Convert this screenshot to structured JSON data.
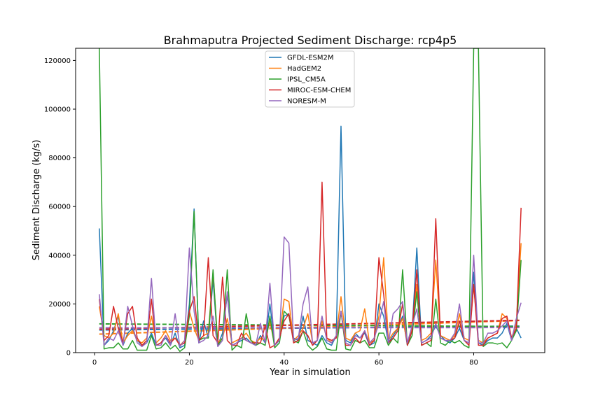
{
  "chart_data": {
    "type": "line",
    "title": "Brahmaputra Projected Sediment Discharge: rcp4p5",
    "xlabel": "Year in simulation",
    "ylabel": "Sediment Discharge (kg/s)",
    "xlim": [
      -4,
      95
    ],
    "ylim": [
      0,
      125000
    ],
    "xticks": [
      0,
      20,
      40,
      60,
      80
    ],
    "yticks": [
      0,
      20000,
      40000,
      60000,
      80000,
      100000,
      120000
    ],
    "grid": false,
    "legend_position": "upper center",
    "series": [
      {
        "name": "GFDL-ESM2M",
        "color": "#1f77b4",
        "values": [
          51000,
          3000,
          5000,
          9000,
          15000,
          3000,
          8000,
          10000,
          5000,
          3000,
          4000,
          8000,
          3000,
          4000,
          6000,
          3000,
          8000,
          2000,
          3000,
          20000,
          59000,
          4000,
          13000,
          6000,
          30000,
          3000,
          8000,
          24000,
          3000,
          4000,
          5000,
          6000,
          4000,
          3000,
          7000,
          4000,
          20000,
          3000,
          5000,
          15000,
          16000,
          6000,
          5000,
          15000,
          5000,
          4000,
          3000,
          7000,
          4000,
          3000,
          7000,
          93000,
          5000,
          4000,
          8000,
          6000,
          8000,
          3000,
          4000,
          20000,
          15000,
          4000,
          7000,
          10000,
          15000,
          3000,
          9000,
          43000,
          4000,
          5000,
          7000,
          11000,
          7000,
          5000,
          4000,
          6000,
          10000,
          5000,
          4000,
          33000,
          4000,
          3000,
          5000,
          6000,
          6000,
          8000,
          12000,
          5000,
          10000,
          6000
        ],
        "trend": [
          9300,
          10900
        ]
      },
      {
        "name": "HadGEM2",
        "color": "#ff7f0e",
        "values": [
          19000,
          7000,
          6000,
          8000,
          16000,
          4000,
          7000,
          9000,
          5000,
          4000,
          6000,
          15000,
          4000,
          6000,
          9000,
          5000,
          6000,
          3000,
          5000,
          17000,
          10000,
          5000,
          7000,
          8000,
          33000,
          4000,
          6000,
          14000,
          4000,
          5000,
          6000,
          8000,
          5000,
          4000,
          6000,
          5000,
          13000,
          3000,
          6000,
          22000,
          21000,
          5000,
          7000,
          10000,
          16000,
          4000,
          5000,
          13000,
          6000,
          4000,
          7000,
          23000,
          6000,
          5000,
          8000,
          9000,
          18000,
          4000,
          5000,
          15000,
          39000,
          5000,
          8000,
          10000,
          14000,
          4000,
          10000,
          28000,
          5000,
          6000,
          8000,
          38000,
          7000,
          6000,
          5000,
          7000,
          16000,
          6000,
          5000,
          28000,
          5000,
          4000,
          6000,
          7000,
          8000,
          16000,
          14000,
          6000,
          12000,
          45000
        ],
        "trend": [
          7600,
          13200
        ]
      },
      {
        "name": "IPSL_CM5A",
        "color": "#2ca02c",
        "values": [
          125000,
          1500,
          2000,
          2000,
          4000,
          1500,
          1500,
          5000,
          1000,
          1000,
          1000,
          7000,
          1500,
          2000,
          4000,
          1500,
          3000,
          500,
          2000,
          15000,
          58000,
          5000,
          6000,
          6000,
          34000,
          3000,
          6000,
          34000,
          1000,
          3000,
          2000,
          16000,
          5000,
          3000,
          4000,
          3000,
          15000,
          2000,
          4000,
          17000,
          15000,
          5000,
          4000,
          9000,
          3000,
          1000,
          2500,
          6000,
          1500,
          1000,
          1000,
          17000,
          1500,
          1000,
          5000,
          4000,
          5000,
          2000,
          2000,
          8000,
          8000,
          3000,
          6000,
          4000,
          34000,
          3000,
          7000,
          25000,
          3000,
          4000,
          2500,
          22000,
          4000,
          3000,
          5000,
          4000,
          5000,
          3000,
          2000,
          125000,
          125000,
          2500,
          4000,
          4000,
          3500,
          4000,
          2000,
          5000,
          9000,
          38000
        ],
        "trend": [
          11800,
          10700
        ]
      },
      {
        "name": "MIROC-ESM-CHEM",
        "color": "#d62728",
        "values": [
          22000,
          5000,
          7000,
          19000,
          10000,
          4000,
          16000,
          19000,
          6000,
          3000,
          5000,
          22000,
          3000,
          4000,
          7000,
          4000,
          6000,
          3000,
          4000,
          17000,
          23000,
          5000,
          7000,
          39000,
          7000,
          4000,
          31000,
          5000,
          3000,
          3000,
          8000,
          5000,
          4000,
          4000,
          4000,
          11000,
          2000,
          3000,
          6000,
          13000,
          16000,
          4000,
          5000,
          9000,
          7000,
          3000,
          5000,
          70000,
          6000,
          5000,
          6000,
          17000,
          3000,
          3000,
          6000,
          4000,
          9000,
          3000,
          5000,
          39000,
          24000,
          4000,
          6000,
          9000,
          20000,
          3000,
          9000,
          34000,
          3000,
          4000,
          5000,
          55000,
          6000,
          5000,
          5000,
          6000,
          13000,
          5000,
          3000,
          28000,
          3000,
          3000,
          6000,
          7000,
          8000,
          14000,
          15000,
          6000,
          10000,
          59500
        ],
        "trend": [
          9600,
          13300
        ]
      },
      {
        "name": "NORESM-M",
        "color": "#9467bd",
        "values": [
          24000,
          3000,
          6000,
          5000,
          9000,
          3000,
          19000,
          11000,
          4000,
          2500,
          4000,
          30500,
          3000,
          3000,
          7000,
          3000,
          16000,
          2500,
          5000,
          43000,
          17000,
          4000,
          5000,
          7000,
          15000,
          2500,
          5000,
          25000,
          3000,
          4000,
          6000,
          5000,
          4000,
          3000,
          12000,
          4000,
          28500,
          3000,
          5000,
          47500,
          45000,
          5000,
          6000,
          20000,
          27000,
          4000,
          5000,
          15000,
          5000,
          4000,
          7000,
          17000,
          4000,
          3000,
          7000,
          6000,
          9000,
          4000,
          6000,
          12000,
          21000,
          4000,
          16000,
          18000,
          21000,
          4000,
          11000,
          18000,
          4000,
          5000,
          6000,
          12000,
          6000,
          5000,
          5000,
          8000,
          20000,
          5000,
          4000,
          40000,
          4000,
          4000,
          8000,
          8000,
          9000,
          11000,
          13000,
          5000,
          14000,
          20500
        ],
        "trend": [
          10200,
          10300
        ]
      }
    ]
  }
}
